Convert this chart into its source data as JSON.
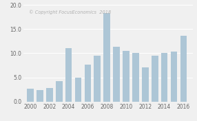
{
  "years": [
    2000,
    2001,
    2002,
    2003,
    2004,
    2005,
    2006,
    2007,
    2008,
    2009,
    2010,
    2011,
    2012,
    2013,
    2014,
    2015,
    2016
  ],
  "values": [
    2.7,
    2.4,
    2.8,
    4.3,
    11.0,
    4.9,
    7.6,
    9.5,
    18.3,
    11.4,
    10.5,
    10.1,
    7.1,
    9.5,
    10.1,
    10.4,
    13.6
  ],
  "bar_color": "#adc6d6",
  "background_color": "#f0f0f0",
  "plot_background": "#f0f0f0",
  "watermark": "© Copyright FocusEconomics  2018",
  "watermark_color": "#b0b0b0",
  "ylim": [
    0,
    20.0
  ],
  "yticks": [
    0.0,
    5.0,
    10.0,
    15.0,
    20.0
  ],
  "xtick_years": [
    2000,
    2002,
    2004,
    2006,
    2008,
    2010,
    2012,
    2014,
    2016
  ],
  "grid_color": "#ffffff",
  "tick_fontsize": 5.5,
  "watermark_fontsize": 4.8
}
